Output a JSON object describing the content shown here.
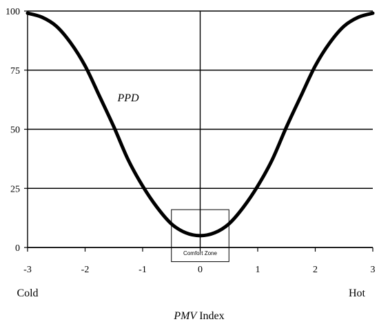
{
  "chart_data": {
    "type": "line",
    "x": [
      -3,
      -2.75,
      -2.5,
      -2.25,
      -2,
      -1.75,
      -1.5,
      -1.25,
      -1,
      -0.75,
      -0.5,
      -0.25,
      0,
      0.25,
      0.5,
      0.75,
      1,
      1.25,
      1.5,
      1.75,
      2,
      2.25,
      2.5,
      2.75,
      3
    ],
    "series": [
      {
        "name": "PPD",
        "values": [
          99.1,
          97.4,
          93.6,
          86.5,
          76.8,
          64.0,
          51.0,
          37.0,
          26.0,
          17.0,
          10.0,
          6.2,
          5.0,
          6.2,
          10.0,
          17.0,
          26.0,
          37.0,
          51.0,
          64.0,
          76.8,
          86.5,
          93.6,
          97.4,
          99.1
        ]
      }
    ],
    "xlim": [
      -3,
      3
    ],
    "ylim": [
      0,
      100
    ],
    "xticks": [
      "-3",
      "-2",
      "-1",
      "0",
      "1",
      "2",
      "3"
    ],
    "yticks": [
      "0",
      "25",
      "50",
      "75",
      "100"
    ],
    "xlabel_italic": "PMV",
    "xlabel_rest": " Index",
    "left_label": "Cold",
    "right_label": "Hot",
    "annotation": "Comfort Zone",
    "comfort_zone_x": [
      -0.5,
      0.5
    ],
    "comfort_zone_y": [
      -6,
      16
    ],
    "grid": "horizontal",
    "curve_color": "#000000"
  }
}
